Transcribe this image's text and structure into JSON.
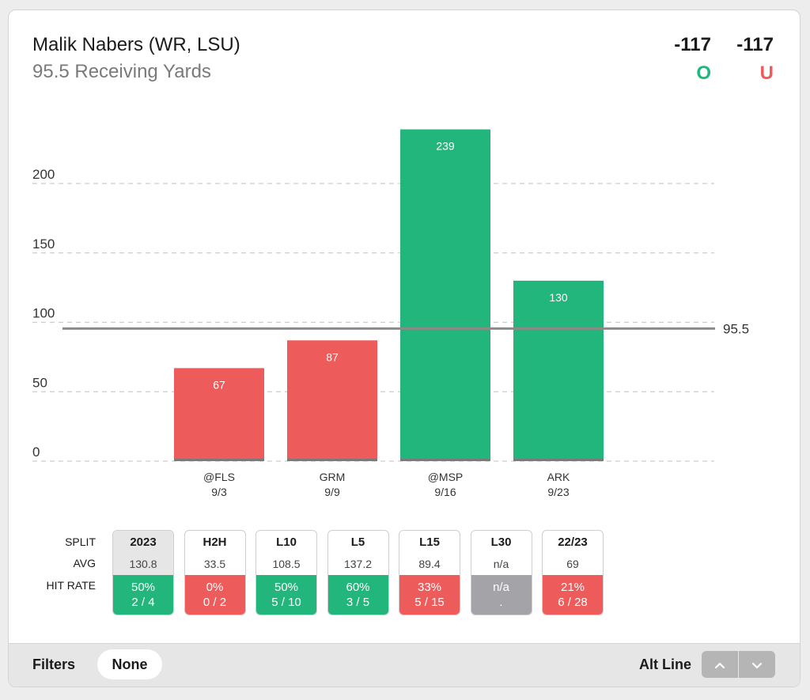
{
  "header": {
    "player": "Malik Nabers (WR, LSU)",
    "market": "95.5 Receiving Yards",
    "over_odds": "-117",
    "under_odds": "-117",
    "over_label": "O",
    "under_label": "U"
  },
  "colors": {
    "over": "#22b67c",
    "under": "#ee5b5b",
    "neutral": "#a3a3a8",
    "line": "#8a8a8a"
  },
  "chart_data": {
    "type": "bar",
    "categories": [
      "@FLS",
      "GRM",
      "@MSP",
      "ARK"
    ],
    "dates": [
      "9/3",
      "9/9",
      "9/16",
      "9/23"
    ],
    "values": [
      67,
      87,
      239,
      130
    ],
    "labels": [
      "67",
      "87",
      "239",
      "130"
    ],
    "y_ticks": [
      "0",
      "50",
      "100",
      "150",
      "200"
    ],
    "ylim": [
      0,
      250
    ],
    "line_value": 95.5,
    "line_label": "95.5",
    "grid": true
  },
  "splits": {
    "row_labels": [
      "SPLIT",
      "AVG",
      "HIT RATE"
    ],
    "columns": [
      {
        "name": "2023",
        "avg": "130.8",
        "pct": "50%",
        "frac": "2 / 4",
        "status": "over",
        "selected": true
      },
      {
        "name": "H2H",
        "avg": "33.5",
        "pct": "0%",
        "frac": "0 / 2",
        "status": "under"
      },
      {
        "name": "L10",
        "avg": "108.5",
        "pct": "50%",
        "frac": "5 / 10",
        "status": "over"
      },
      {
        "name": "L5",
        "avg": "137.2",
        "pct": "60%",
        "frac": "3 / 5",
        "status": "over"
      },
      {
        "name": "L15",
        "avg": "89.4",
        "pct": "33%",
        "frac": "5 / 15",
        "status": "under"
      },
      {
        "name": "L30",
        "avg": "n/a",
        "pct": "n/a",
        "frac": ".",
        "status": "neutral"
      },
      {
        "name": "22/23",
        "avg": "69",
        "pct": "21%",
        "frac": "6 / 28",
        "status": "under"
      }
    ]
  },
  "footer": {
    "filters_label": "Filters",
    "filter_value": "None",
    "alt_line_label": "Alt Line",
    "up_icon": "chevron-up-icon",
    "down_icon": "chevron-down-icon"
  }
}
